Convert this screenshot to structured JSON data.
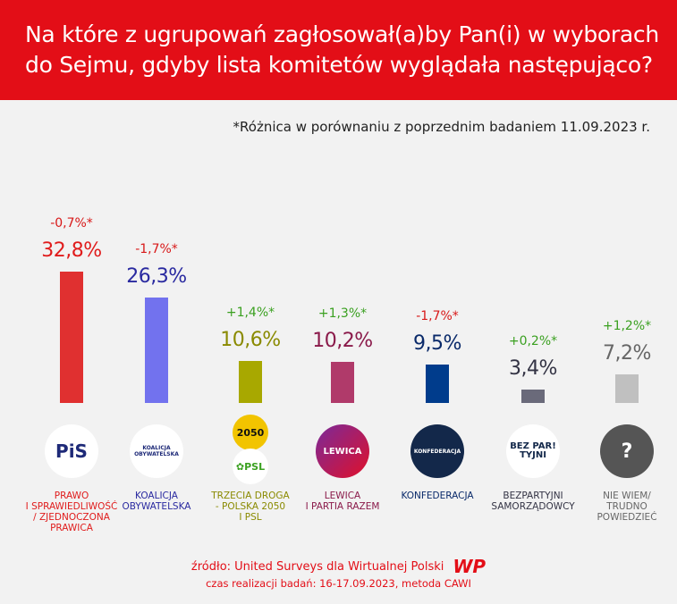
{
  "header": {
    "title": "Na które z ugrupowań zagłosował(a)by Pan(i) w wyborach do Sejmu, gdyby lista komitetów wyglądała następująco?"
  },
  "note": "*Różnica w porównaniu z poprzednim badaniem 11.09.2023 r.",
  "chart_data": {
    "type": "bar",
    "title": "Na które z ugrupowań zagłosował(a)by Pan(i) w wyborach do Sejmu, gdyby lista komitetów wyglądała następująco?",
    "categories": [
      "PRAWO I SPRAWIEDLIWOŚĆ / ZJEDNOCZONA PRAWICA",
      "KOALICJA OBYWATELSKA",
      "TRZECIA DROGA - POLSKA 2050 I PSL",
      "LEWICA I PARTIA RAZEM",
      "KONFEDERACJA",
      "BEZPARTYJNI SAMORZĄDOWCY",
      "NIE WIEM/ TRUDNO POWIEDZIEĆ"
    ],
    "values": [
      32.8,
      26.3,
      10.6,
      10.2,
      9.5,
      3.4,
      7.2
    ],
    "value_labels": [
      "32,8%",
      "26,3%",
      "10,6%",
      "10,2%",
      "9,5%",
      "3,4%",
      "7,2%"
    ],
    "changes": [
      -0.7,
      -1.7,
      1.4,
      1.3,
      -1.7,
      0.2,
      1.2
    ],
    "change_labels": [
      "-0,7%*",
      "-1,7%*",
      "+1,4%*",
      "+1,3%*",
      "-1,7%*",
      "+0,2%*",
      "+1,2%*"
    ],
    "colors": [
      "#e03030",
      "#7272ee",
      "#a8a800",
      "#b03a6a",
      "#003c8c",
      "#6a6a7a",
      "#c0c0c0"
    ],
    "label_colors": [
      "#e01c1c",
      "#2a2aa0",
      "#8a8a00",
      "#8a1a4a",
      "#0a2a6a",
      "#333344",
      "#666666"
    ],
    "change_colors": {
      "negative": "#d81818",
      "positive": "#3aa020"
    },
    "ylim": [
      0,
      35
    ]
  },
  "logos": [
    {
      "text": "PiS",
      "icon": "pis-logo"
    },
    {
      "text": "KOALICJA OBYWATELSKA",
      "icon": "ko-logo"
    },
    {
      "text": "2050",
      "text2": "PSL",
      "icon": "trzecia-droga-logo"
    },
    {
      "text": "LEWICA",
      "icon": "lewica-logo"
    },
    {
      "text": "KONFEDERACJA",
      "icon": "konfederacja-logo"
    },
    {
      "text": "BEZ PAR! TYJNI",
      "icon": "bezpartyjni-logo"
    },
    {
      "text": "?",
      "icon": "question-icon"
    }
  ],
  "source": "źródło: United Surveys dla Wirtualnej Polski",
  "brand": "WP",
  "method": "czas realizacji badań: 16-17.09.2023, metoda CAWI"
}
